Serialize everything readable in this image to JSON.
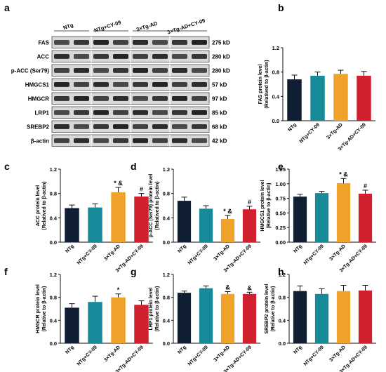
{
  "blot": {
    "panel_label": "a",
    "groups": [
      "NTg",
      "NTg+CY-09",
      "3×Tg-AD",
      "3×Tg-AD+CY-09"
    ],
    "rows": [
      {
        "protein": "FAS",
        "size": "275 kD"
      },
      {
        "protein": "ACC",
        "size": "280 kD"
      },
      {
        "protein": "p-ACC (Ser79)",
        "size": "280 kD"
      },
      {
        "protein": "HMGCS1",
        "size": "57 kD"
      },
      {
        "protein": "HMGCR",
        "size": "97 kD"
      },
      {
        "protein": "LRP1",
        "size": "85 kD"
      },
      {
        "protein": "SREBP2",
        "size": "68 kD"
      },
      {
        "protein": "β-actin",
        "size": "42 kD"
      }
    ]
  },
  "colors": {
    "NTg": "#101e33",
    "NTg+CY-09": "#188b9a",
    "3×Tg-AD": "#f0a32a",
    "3×Tg-AD+CY-09": "#d0202e",
    "band": "#1a1a1a",
    "blot_bg": "#d8d8d8"
  },
  "chart_data": [
    {
      "panel": "b",
      "type": "bar",
      "categories": [
        "NTg",
        "NTg+CY-09",
        "3×Tg-AD",
        "3×Tg-AD+CY-09"
      ],
      "values": [
        0.68,
        0.74,
        0.77,
        0.74
      ],
      "errors": [
        0.07,
        0.06,
        0.06,
        0.07
      ],
      "annotations": [
        "",
        "",
        "",
        ""
      ],
      "ylabel": [
        "FAS protein level",
        "(Relatived to β-actin)"
      ],
      "ylim": [
        0,
        1.2
      ],
      "yticks": [
        "0.0",
        "0.4",
        "0.8",
        "1.2"
      ]
    },
    {
      "panel": "c",
      "type": "bar",
      "categories": [
        "NTg",
        "NTg+CY-09",
        "3×Tg-AD",
        "3×Tg-AD+CY-09"
      ],
      "values": [
        0.56,
        0.57,
        0.82,
        0.75
      ],
      "errors": [
        0.05,
        0.06,
        0.08,
        0.05
      ],
      "annotations": [
        "",
        "",
        "* &",
        "#"
      ],
      "ylabel": [
        "ACC protein level",
        "(Relatived to β-actin)"
      ],
      "ylim": [
        0,
        1.2
      ],
      "yticks": [
        "0.0",
        "0.4",
        "0.8",
        "1.2"
      ]
    },
    {
      "panel": "d",
      "type": "bar",
      "categories": [
        "NTg",
        "NTg+CY-09",
        "3×Tg-AD",
        "3×Tg-AD+CY-09"
      ],
      "values": [
        0.68,
        0.55,
        0.38,
        0.54
      ],
      "errors": [
        0.06,
        0.05,
        0.06,
        0.05
      ],
      "annotations": [
        "",
        "",
        "* &",
        "#"
      ],
      "ylabel": [
        "p-ACC (Ser79) protein level",
        "(Relatived to β-actin)"
      ],
      "ylim": [
        0,
        1.2
      ],
      "yticks": [
        "0.0",
        "0.4",
        "0.8",
        "1.2"
      ]
    },
    {
      "panel": "e",
      "type": "bar",
      "categories": [
        "NTg",
        "NTg+CY-09",
        "3×Tg-AD",
        "3×Tg-AD+CY-09"
      ],
      "values": [
        0.78,
        0.84,
        1.01,
        0.83
      ],
      "errors": [
        0.04,
        0.03,
        0.08,
        0.06
      ],
      "annotations": [
        "",
        "",
        "* &",
        "#"
      ],
      "ylabel": [
        "HMGCS1 protein level",
        "(Relative to β-actin)"
      ],
      "ylim": [
        0,
        1.25
      ],
      "yticks": [
        "0.00",
        "0.25",
        "0.50",
        "0.75",
        "1.00",
        "1.25"
      ]
    },
    {
      "panel": "f",
      "type": "bar",
      "categories": [
        "NTg",
        "NTg+CY-09",
        "3×Tg-AD",
        "3×Tg-AD+CY-09"
      ],
      "values": [
        0.62,
        0.72,
        0.8,
        0.67
      ],
      "errors": [
        0.07,
        0.1,
        0.06,
        0.07
      ],
      "annotations": [
        "",
        "",
        "*",
        ""
      ],
      "ylabel": [
        "HMGCR protein level",
        "(Relative to β-actin)"
      ],
      "ylim": [
        0,
        1.2
      ],
      "yticks": [
        "0.0",
        "0.4",
        "0.8",
        "1.2"
      ]
    },
    {
      "panel": "g",
      "type": "bar",
      "categories": [
        "NTg",
        "NTg+CY-09",
        "3×Tg-AD",
        "3×Tg-AD+CY-09"
      ],
      "values": [
        0.88,
        0.96,
        0.86,
        0.86
      ],
      "errors": [
        0.03,
        0.04,
        0.04,
        0.03
      ],
      "annotations": [
        "",
        "",
        "&",
        "&"
      ],
      "ylabel": [
        "LRP1 protein level",
        "(Relative to β-actin)"
      ],
      "ylim": [
        0,
        1.2
      ],
      "yticks": [
        "0.0",
        "0.4",
        "0.8",
        "1.2"
      ]
    },
    {
      "panel": "h",
      "type": "bar",
      "categories": [
        "NTg",
        "NTg+CY-09",
        "3×Tg-AD",
        "3×Tg-AD+CY-09"
      ],
      "values": [
        0.91,
        0.86,
        0.91,
        0.92
      ],
      "errors": [
        0.09,
        0.09,
        0.1,
        0.09
      ],
      "annotations": [
        "",
        "",
        "",
        ""
      ],
      "ylabel": [
        "SREBP2 protein level",
        "(Relative to β-actin)"
      ],
      "ylim": [
        0,
        1.2
      ],
      "yticks": [
        "0.0",
        "0.4",
        "0.8",
        "1.2"
      ]
    }
  ]
}
